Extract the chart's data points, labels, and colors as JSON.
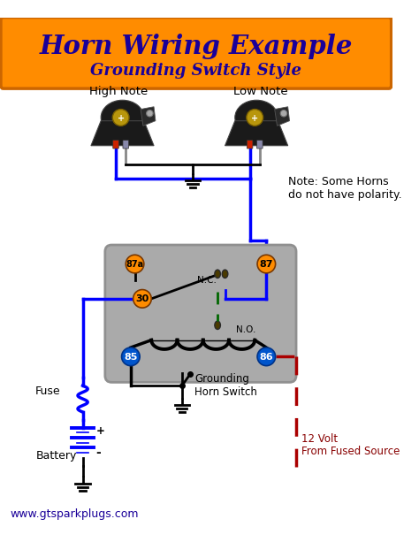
{
  "title": "Horn Wiring Example",
  "subtitle": "Grounding Switch Style",
  "title_bg": "#FF8C00",
  "title_color": "#1a0099",
  "bg_color": "#ffffff",
  "website": "www.gtsparkplugs.com",
  "note_text": "Note: Some Horns\ndo not have polarity.",
  "wire_blue": "#0000ff",
  "wire_black": "#000000",
  "wire_red": "#aa0000",
  "wire_green_dash": "#006600",
  "relay_bg": "#aaaaaa",
  "terminal_orange": "#FF8C00",
  "terminal_blue": "#0055cc",
  "label_high": "High Note",
  "label_low": "Low Note",
  "label_87a": "87a",
  "label_87": "87",
  "label_30": "30",
  "label_85": "85",
  "label_86": "86",
  "label_nc": "N.C.",
  "label_no": "N.O.",
  "label_fuse": "Fuse",
  "label_battery": "Battery",
  "label_ground_switch": "Grounding\nHorn Switch",
  "label_12v": "12 Volt",
  "label_fused": "From Fused Source",
  "horn_dark": "#1a1a1a",
  "horn_mid": "#2d2d2d",
  "horn_gold": "#b8960c"
}
